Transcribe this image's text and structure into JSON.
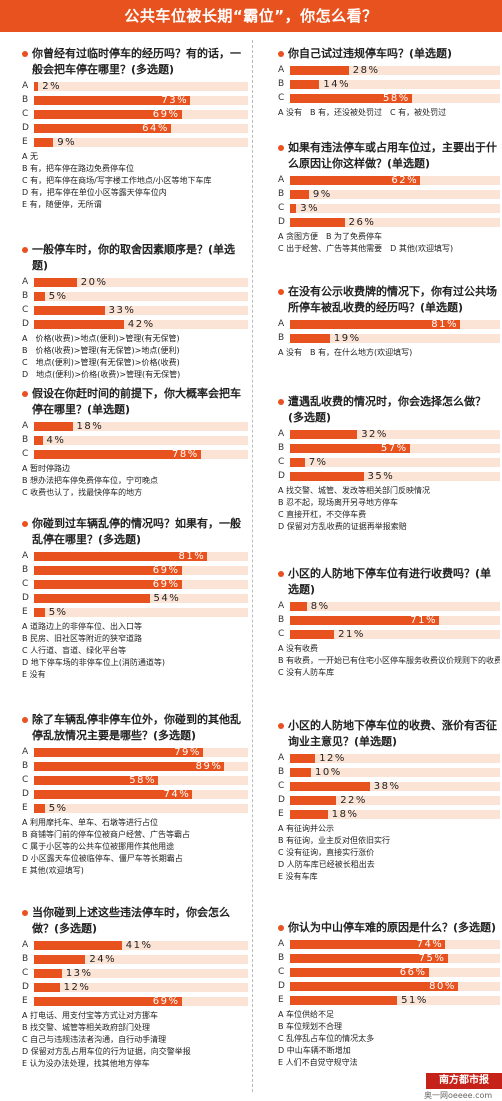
{
  "title": "公共车位被长期“霸位”，你怎么看？",
  "watermark": "南方都市报",
  "watermark_sub": "奥一网oeeee.com",
  "colors": {
    "bar": "#e8521e",
    "track": "#fbe3d5",
    "accent": "#e8521e"
  },
  "chart_data": [
    {
      "type": "bar",
      "question": "你曾经有过临时停车的经历吗？有的话，一般会把车停在哪里？(多选题)",
      "categories": [
        "A",
        "B",
        "C",
        "D",
        "E"
      ],
      "values": [
        2,
        73,
        69,
        64,
        9
      ],
      "xlim": [
        0,
        100
      ],
      "options": [
        "A 无",
        "B 有，把车停在路边免费停车位",
        "C 有，把车停在商场/写字楼工作地点/小区等地下车库",
        "D 有，把车停在单位小区等露天停车位内",
        "E 有，随便停，无所谓"
      ]
    },
    {
      "type": "bar",
      "question": "一般停车时，你的取舍因素顺序是？(单选题)",
      "categories": [
        "A",
        "B",
        "C",
        "D"
      ],
      "values": [
        20,
        5,
        33,
        42
      ],
      "xlim": [
        0,
        100
      ],
      "options": [
        "A　价格(收费)>地点(便利)>管理(有无保管)",
        "B　价格(收费)>管理(有无保管)>地点(便利)",
        "C　地点(便利)>管理(有无保管)>价格(收费)",
        "D　地点(便利)>价格(收费)>管理(有无保管)"
      ]
    },
    {
      "type": "bar",
      "question": "假设在你赶时间的前提下，你大概率会把车停在哪里？(单选题)",
      "categories": [
        "A",
        "B",
        "C"
      ],
      "values": [
        18,
        4,
        78
      ],
      "xlim": [
        0,
        100
      ],
      "options": [
        "A 暂时停路边",
        "B 想办法把车停免费停车位，宁可晚点",
        "C 收费也认了，找最快停车的地方"
      ]
    },
    {
      "type": "bar",
      "question": "你碰到过车辆乱停的情况吗？如果有，一般乱停在哪里？(多选题)",
      "categories": [
        "A",
        "B",
        "C",
        "D",
        "E"
      ],
      "values": [
        81,
        69,
        69,
        54,
        5
      ],
      "xlim": [
        0,
        100
      ],
      "options": [
        "A 道路边上的非停车位、出入口等",
        "B 民房、旧社区等附近的狭窄道路",
        "C 人行道、盲道、绿化平台等",
        "D 地下停车场的非停车位上(消防通道等)",
        "E 没有"
      ]
    },
    {
      "type": "bar",
      "question": "除了车辆乱停非停车位外，你碰到的其他乱停乱放情况主要是哪些？(多选题)",
      "categories": [
        "A",
        "B",
        "C",
        "D",
        "E"
      ],
      "values": [
        79,
        89,
        58,
        74,
        5
      ],
      "xlim": [
        0,
        100
      ],
      "options": [
        "A 利用摩托车、单车、石墩等进行占位",
        "B 商铺等门前的停车位被商户经营、广告等霸占",
        "C 属于小区等的公共车位被挪用作其他用途",
        "D 小区露天车位被临停车、僵尸车等长期霸占",
        "E 其他(欢迎填写)"
      ]
    },
    {
      "type": "bar",
      "question": "当你碰到上述这些违法停车时，你会怎么做？(多选题)",
      "categories": [
        "A",
        "B",
        "C",
        "D",
        "E"
      ],
      "values": [
        41,
        24,
        13,
        12,
        69
      ],
      "xlim": [
        0,
        100
      ],
      "options": [
        "A 打电话、用支付宝等方式让对方挪车",
        "B 找交警、城管等相关政府部门处理",
        "C 自己与违规违法者沟通，自行动手清理",
        "D 保留对方乱占用车位的行为证据，向交警举报",
        "E 认为没办法处理，找其他地方停车"
      ]
    },
    {
      "type": "bar",
      "question": "你自己试过违规停车吗？(单选题)",
      "categories": [
        "A",
        "B",
        "C"
      ],
      "values": [
        28,
        14,
        58
      ],
      "xlim": [
        0,
        100
      ],
      "options": [
        "A 没有　B 有，还没被处罚过　C 有，被处罚过"
      ]
    },
    {
      "type": "bar",
      "question": "如果有违法停车或占用车位过，主要出于什么原因让你这样做？(单选题)",
      "categories": [
        "A",
        "B",
        "C",
        "D"
      ],
      "values": [
        62,
        9,
        3,
        26
      ],
      "xlim": [
        0,
        100
      ],
      "options": [
        "A 贪图方便　B 为了免费停车",
        "C 出于经营、广告等其他需要　D 其他(欢迎填写)"
      ]
    },
    {
      "type": "bar",
      "question": "在没有公示收费牌的情况下，你有过公共场所停车被乱收费的经历吗？(单选题)",
      "categories": [
        "A",
        "B"
      ],
      "values": [
        81,
        19
      ],
      "xlim": [
        0,
        100
      ],
      "options": [
        "A 没有　B 有，在什么地方(欢迎填写)"
      ]
    },
    {
      "type": "bar",
      "question": "遭遇乱收费的情况时，你会选择怎么做？(多选题)",
      "categories": [
        "A",
        "B",
        "C",
        "D"
      ],
      "values": [
        32,
        57,
        7,
        35
      ],
      "xlim": [
        0,
        100
      ],
      "options": [
        "A 找交警、城管、发改等相关部门反映情况",
        "B 忍不起，现场离开另寻地方停车",
        "C 直接开杠，不交停车费",
        "D 保留对方乱收费的证据再举报索赔"
      ]
    },
    {
      "type": "bar",
      "question": "小区的人防地下停车位有进行收费吗？(单选题)",
      "categories": [
        "A",
        "B",
        "C"
      ],
      "values": [
        8,
        71,
        21
      ],
      "xlim": [
        0,
        100
      ],
      "options": [
        "A 没有收费",
        "B 有收费，一开始已有住宅小区停车服务收费议价规则下的收费标准",
        "C 没有人防车库"
      ]
    },
    {
      "type": "bar",
      "question": "小区的人防地下停车位的收费、涨价有否征询业主意见？(单选题)",
      "categories": [
        "A",
        "B",
        "C",
        "D",
        "E"
      ],
      "values": [
        12,
        10,
        38,
        22,
        18
      ],
      "xlim": [
        0,
        100
      ],
      "options": [
        "A 有征询并公示",
        "B 有征询，业主反对但依旧实行",
        "C 没有征询，直接实行涨价",
        "D 人防车库已经被长租出去",
        "E 没有车库"
      ]
    },
    {
      "type": "bar",
      "question": "你认为中山停车难的原因是什么？(多选题)",
      "categories": [
        "A",
        "B",
        "C",
        "D",
        "E"
      ],
      "values": [
        74,
        75,
        66,
        80,
        51
      ],
      "xlim": [
        0,
        100
      ],
      "options": [
        "A 车位供给不足",
        "B 车位规划不合理",
        "C 乱停乱占车位的情况太多",
        "D 中山车辆不断增加",
        "E 人们不自觉守规守法"
      ]
    }
  ]
}
